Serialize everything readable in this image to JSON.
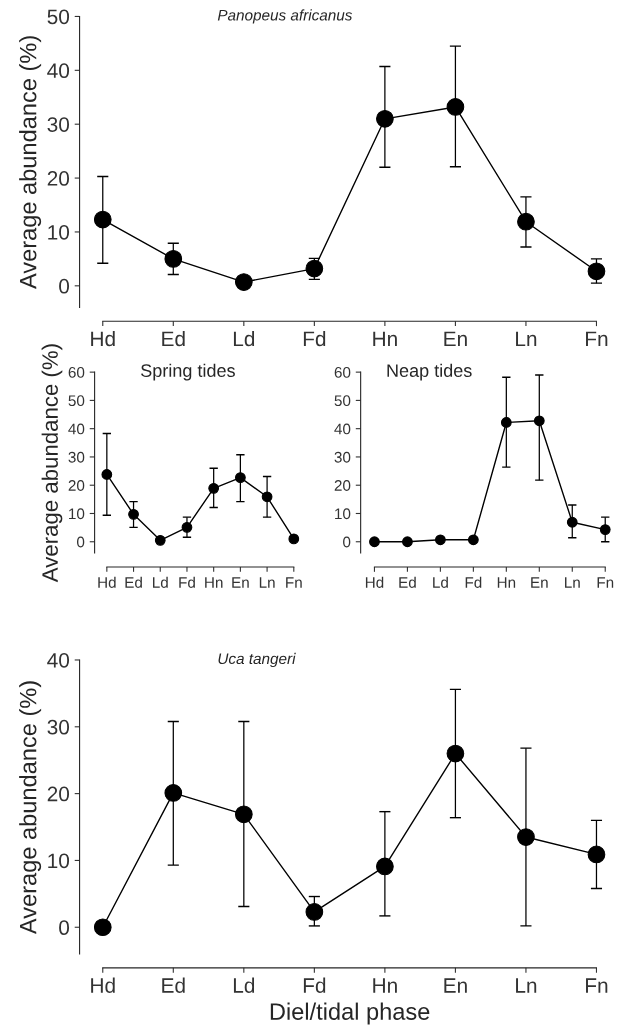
{
  "chart_data": [
    {
      "type": "line",
      "title": "Panopeus africanus",
      "ylabel": "Average abundance (%)",
      "categories": [
        "Hd",
        "Ed",
        "Ld",
        "Fd",
        "Hn",
        "En",
        "Ln",
        "Fn"
      ],
      "marker": "circle",
      "grid": false,
      "ylim": [
        -4,
        50
      ],
      "yticks": [
        0,
        10,
        20,
        30,
        40,
        50
      ],
      "series": [
        {
          "color": "#000000",
          "values": [
            12.3,
            5,
            0.7,
            3.2,
            31,
            33.2,
            11.9,
            2.7
          ],
          "errors": [
            [
              4.2,
              20.3
            ],
            [
              2.1,
              7.9
            ],
            null,
            [
              1.2,
              5.1
            ],
            [
              22,
              40.7
            ],
            [
              22.1,
              44.5
            ],
            [
              7.2,
              16.5
            ],
            [
              0.5,
              5
            ]
          ]
        }
      ]
    },
    {
      "type": "line",
      "title": "Spring tides",
      "ylabel": "Average abundance (%)",
      "categories": [
        "Hd",
        "Ed",
        "Ld",
        "Fd",
        "Hn",
        "En",
        "Ln",
        "Fn"
      ],
      "marker": "circle",
      "grid": false,
      "ylim": [
        -4,
        60
      ],
      "yticks": [
        0,
        10,
        20,
        30,
        40,
        50,
        60
      ],
      "series": [
        {
          "color": "#000000",
          "values": [
            23.8,
            9.7,
            0.5,
            5.1,
            18.9,
            22.7,
            15.9,
            1.0
          ],
          "errors": [
            [
              9.4,
              38.3
            ],
            [
              5.1,
              14.2
            ],
            null,
            [
              1.6,
              8.7
            ],
            [
              12.1,
              26
            ],
            [
              14.2,
              30.8
            ],
            [
              8.7,
              23.1
            ],
            null
          ]
        }
      ]
    },
    {
      "type": "line",
      "title": "Neap tides",
      "categories": [
        "Hd",
        "Ed",
        "Ld",
        "Fd",
        "Hn",
        "En",
        "Ln",
        "Fn"
      ],
      "marker": "circle",
      "grid": false,
      "ylim": [
        -4,
        60
      ],
      "yticks": [
        0,
        10,
        20,
        30,
        40,
        50,
        60
      ],
      "series": [
        {
          "color": "#000000",
          "values": [
            0,
            0,
            0.7,
            0.7,
            42.2,
            42.8,
            6.9,
            4.3
          ],
          "errors": [
            null,
            null,
            null,
            null,
            [
              26.4,
              58.2
            ],
            [
              21.8,
              59
            ],
            [
              1.4,
              13
            ],
            [
              0,
              8.7
            ]
          ]
        }
      ]
    },
    {
      "type": "line",
      "title": "Uca tangeri",
      "xlabel": "Diel/tidal phase",
      "ylabel": "Average abundance (%)",
      "categories": [
        "Hd",
        "Ed",
        "Ld",
        "Fd",
        "Hn",
        "En",
        "Ln",
        "Fn"
      ],
      "marker": "circle",
      "grid": false,
      "ylim": [
        -4,
        40
      ],
      "yticks": [
        0,
        10,
        20,
        30,
        40
      ],
      "series": [
        {
          "color": "#000000",
          "values": [
            0,
            20.1,
            16.9,
            2.3,
            9.1,
            26,
            13.5,
            10.9
          ],
          "errors": [
            null,
            [
              9.3,
              30.8
            ],
            [
              3.1,
              30.8
            ],
            [
              0.2,
              4.6
            ],
            [
              1.7,
              17.3
            ],
            [
              16.4,
              35.6
            ],
            [
              0.2,
              26.8
            ],
            [
              5.8,
              16
            ]
          ]
        }
      ]
    }
  ]
}
